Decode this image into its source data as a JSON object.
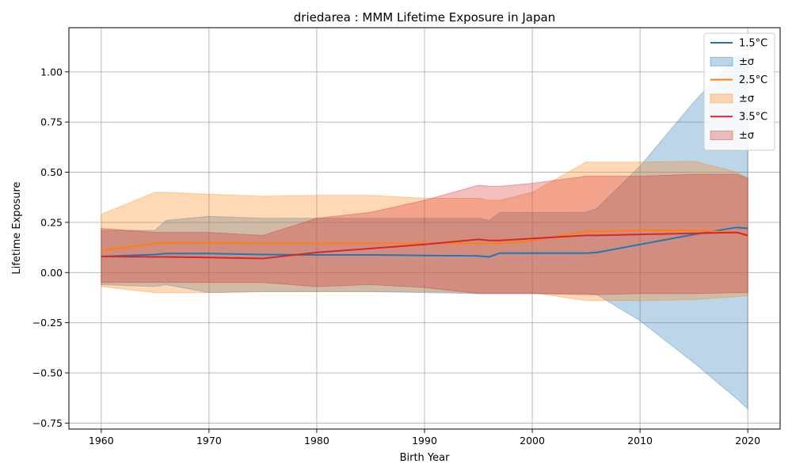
{
  "chart_data": {
    "type": "area",
    "title": "driedarea : MMM Lifetime Exposure in Japan",
    "xlabel": "Birth Year",
    "ylabel": "Lifetime Exposure",
    "xlim": [
      1957,
      2023
    ],
    "ylim": [
      -0.78,
      1.22
    ],
    "xticks": [
      1960,
      1970,
      1980,
      1990,
      2000,
      2010,
      2020
    ],
    "yticks": [
      -0.75,
      -0.5,
      -0.25,
      0.0,
      0.25,
      0.5,
      0.75,
      1.0
    ],
    "ytick_labels": [
      "−0.75",
      "−0.50",
      "−0.25",
      "0.00",
      "0.25",
      "0.50",
      "0.75",
      "1.00"
    ],
    "grid": true,
    "legend": "top-right",
    "x": [
      1960,
      1965,
      1966,
      1970,
      1975,
      1980,
      1985,
      1990,
      1995,
      1996,
      1997,
      2000,
      2005,
      2006,
      2010,
      2015,
      2019,
      2020
    ],
    "series": [
      {
        "name": "1.5°C",
        "band_name": "±σ",
        "color": "#1f77b4",
        "band_color": "#1f77b4",
        "mean": [
          0.08,
          0.09,
          0.095,
          0.095,
          0.09,
          0.088,
          0.088,
          0.085,
          0.083,
          0.078,
          0.097,
          0.097,
          0.097,
          0.1,
          0.14,
          0.19,
          0.225,
          0.22
        ],
        "upper": [
          0.21,
          0.21,
          0.26,
          0.28,
          0.27,
          0.27,
          0.27,
          0.27,
          0.27,
          0.26,
          0.3,
          0.3,
          0.3,
          0.32,
          0.53,
          0.85,
          1.08,
          1.09
        ],
        "lower": [
          -0.06,
          -0.07,
          -0.06,
          -0.1,
          -0.095,
          -0.095,
          -0.095,
          -0.1,
          -0.105,
          -0.105,
          -0.105,
          -0.105,
          -0.105,
          -0.11,
          -0.24,
          -0.45,
          -0.63,
          -0.68
        ]
      },
      {
        "name": "2.5°C",
        "band_name": "±σ",
        "color": "#ff7f0e",
        "band_color": "#ff7f0e",
        "mean": [
          0.11,
          0.145,
          0.148,
          0.148,
          0.145,
          0.145,
          0.145,
          0.145,
          0.145,
          0.145,
          0.145,
          0.16,
          0.205,
          0.205,
          0.21,
          0.21,
          0.2,
          0.18
        ],
        "upper": [
          0.29,
          0.4,
          0.4,
          0.39,
          0.38,
          0.385,
          0.385,
          0.37,
          0.37,
          0.36,
          0.36,
          0.4,
          0.55,
          0.55,
          0.55,
          0.555,
          0.5,
          0.47
        ],
        "lower": [
          -0.07,
          -0.1,
          -0.1,
          -0.1,
          -0.095,
          -0.095,
          -0.095,
          -0.095,
          -0.1,
          -0.1,
          -0.1,
          -0.1,
          -0.14,
          -0.14,
          -0.14,
          -0.135,
          -0.12,
          -0.115
        ]
      },
      {
        "name": "3.5°C",
        "band_name": "±σ",
        "color": "#d62728",
        "band_color": "#d62728",
        "mean": [
          0.08,
          0.078,
          0.078,
          0.075,
          0.07,
          0.1,
          0.12,
          0.14,
          0.165,
          0.16,
          0.16,
          0.17,
          0.185,
          0.185,
          0.19,
          0.195,
          0.2,
          0.185
        ],
        "upper": [
          0.22,
          0.2,
          0.2,
          0.2,
          0.185,
          0.27,
          0.3,
          0.36,
          0.435,
          0.43,
          0.43,
          0.445,
          0.48,
          0.48,
          0.48,
          0.49,
          0.49,
          0.47
        ],
        "lower": [
          -0.05,
          -0.05,
          -0.05,
          -0.05,
          -0.05,
          -0.07,
          -0.06,
          -0.075,
          -0.105,
          -0.105,
          -0.105,
          -0.105,
          -0.11,
          -0.11,
          -0.105,
          -0.105,
          -0.1,
          -0.1
        ]
      }
    ]
  }
}
